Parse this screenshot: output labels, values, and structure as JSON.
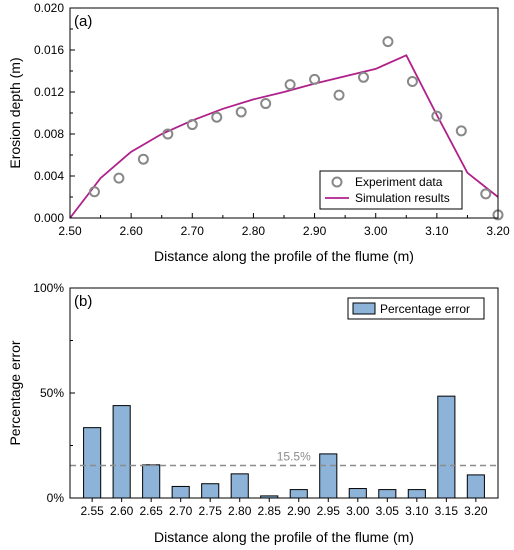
{
  "chart_data": [
    {
      "type": "scatter",
      "panel_label": "(a)",
      "xlabel": "Distance along the profile of the flume (m)",
      "ylabel": "Erosion depth (m)",
      "xlim": [
        2.5,
        3.2
      ],
      "ylim": [
        0,
        0.02
      ],
      "xticks": [
        2.5,
        2.6,
        2.7,
        2.8,
        2.9,
        3.0,
        3.1,
        3.2
      ],
      "xtick_labels": [
        "2.50",
        "2.60",
        "2.70",
        "2.80",
        "2.90",
        "3.00",
        "3.10",
        "3.20"
      ],
      "yticks": [
        0,
        0.004,
        0.008,
        0.012,
        0.016,
        0.02
      ],
      "ytick_labels": [
        "0.000",
        "0.004",
        "0.008",
        "0.012",
        "0.016",
        "0.020"
      ],
      "grid": false,
      "legend_position": "bottom-right",
      "series": [
        {
          "name": "Experiment data",
          "kind": "scatter",
          "marker": "open-circle",
          "color": "#888888",
          "x": [
            2.54,
            2.58,
            2.62,
            2.66,
            2.7,
            2.74,
            2.78,
            2.82,
            2.86,
            2.9,
            2.94,
            2.98,
            3.02,
            3.06,
            3.1,
            3.14,
            3.18,
            3.2
          ],
          "y": [
            0.0025,
            0.0038,
            0.0056,
            0.008,
            0.0089,
            0.0096,
            0.0101,
            0.0109,
            0.0127,
            0.0132,
            0.0117,
            0.0134,
            0.0168,
            0.013,
            0.0097,
            0.0083,
            0.0023,
            0.0003
          ]
        },
        {
          "name": "Simulation results",
          "kind": "line",
          "color": "#b0208a",
          "x": [
            2.5,
            2.55,
            2.6,
            2.65,
            2.7,
            2.75,
            2.8,
            2.85,
            2.9,
            2.95,
            3.0,
            3.05,
            3.1,
            3.15,
            3.2
          ],
          "y": [
            0.0,
            0.0038,
            0.0063,
            0.008,
            0.0093,
            0.0104,
            0.0113,
            0.012,
            0.0128,
            0.0135,
            0.0142,
            0.0155,
            0.0098,
            0.0043,
            0.002
          ]
        }
      ]
    },
    {
      "type": "bar",
      "panel_label": "(b)",
      "xlabel": "Distance along the profile of the flume (m)",
      "ylabel": "Percentage error",
      "categories": [
        "2.55",
        "2.60",
        "2.65",
        "2.70",
        "2.75",
        "2.80",
        "2.85",
        "2.90",
        "2.95",
        "3.00",
        "3.05",
        "3.10",
        "3.15",
        "3.20"
      ],
      "ylim": [
        0,
        100
      ],
      "yticks": [
        0,
        50,
        100
      ],
      "ytick_labels": [
        "0%",
        "50%",
        "100%"
      ],
      "grid": false,
      "legend_position": "top-right",
      "bar_color": "#8db3d8",
      "series": [
        {
          "name": "Percentage error",
          "values": [
            33.5,
            44.0,
            15.8,
            5.5,
            6.8,
            11.5,
            1.0,
            4.0,
            21.0,
            4.5,
            4.0,
            4.0,
            48.5,
            11.0
          ]
        }
      ],
      "reference_line": {
        "value": 15.5,
        "label": "15.5%",
        "style": "dashed",
        "color": "#8c8c8c"
      }
    }
  ]
}
